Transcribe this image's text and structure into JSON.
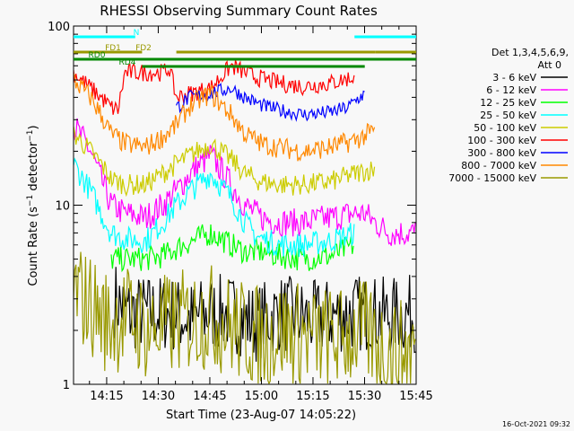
{
  "chart_data": {
    "type": "line",
    "title": "RHESSI Observing Summary Count Rates",
    "xlabel": "Start Time (23-Aug-07 14:05:22)",
    "ylabel": "Count Rate (s⁻¹ detector⁻¹)",
    "ylabel_main": "Count Rate (s",
    "ylabel_sup1": "−1",
    "ylabel_mid": " detector",
    "ylabel_sup2": "−1",
    "ylabel_end": ")",
    "yscale": "log",
    "ylim": [
      1,
      100
    ],
    "y_ticks": [
      {
        "v": 1,
        "label": "1"
      },
      {
        "v": 10,
        "label": "10"
      },
      {
        "v": 100,
        "label": "100"
      }
    ],
    "xlim": [
      "14:05:22",
      "15:45:00"
    ],
    "x_ticks": [
      "14:15",
      "14:30",
      "14:45",
      "15:00",
      "15:15",
      "15:30",
      "15:45"
    ],
    "grid": false,
    "legend_position": "right",
    "legend_header": [
      "Det 1,3,4,5,6,9,",
      "Att 0"
    ],
    "series": [
      {
        "name": "3 - 6 keV",
        "color": "#000000",
        "x": [
          12,
          16,
          20,
          28,
          34,
          40,
          46,
          53,
          60,
          70,
          80,
          85,
          92,
          100
        ],
        "y": [
          3.0,
          2.5,
          2.5,
          2.5,
          2.3,
          2.5,
          2.5,
          2.2,
          2.5,
          2.3,
          2.5,
          2.5,
          2.4,
          2.5
        ]
      },
      {
        "name": "6 - 12 keV",
        "color": "#ff00ff",
        "x": [
          0,
          5,
          8,
          11,
          15,
          21,
          26,
          30,
          34,
          40,
          46,
          50,
          53,
          55,
          60,
          67,
          75,
          82,
          85,
          88,
          92,
          100
        ],
        "y": [
          28,
          20,
          14,
          10,
          9,
          8.5,
          10,
          12,
          15,
          19,
          13,
          10,
          9,
          8.5,
          8,
          8,
          8.5,
          9,
          9,
          8,
          7,
          7
        ]
      },
      {
        "name": "12 - 25 keV",
        "color": "#00ff00",
        "x": [
          11,
          15,
          21,
          26,
          32,
          40,
          46,
          50,
          55,
          60,
          67,
          75,
          82
        ],
        "y": [
          5.0,
          5.0,
          5.0,
          5.2,
          6,
          7,
          6,
          5.5,
          5.5,
          5.2,
          5.0,
          5.2,
          6
        ]
      },
      {
        "name": "25 - 50 keV",
        "color": "#00ffff",
        "x": [
          0,
          5,
          8,
          11,
          15,
          21,
          26,
          30,
          34,
          40,
          46,
          50,
          53,
          55,
          60,
          67,
          75,
          82
        ],
        "y": [
          17,
          12,
          9,
          7,
          6.5,
          6.3,
          8,
          10,
          12,
          15,
          11,
          8,
          6.8,
          6.5,
          6.0,
          6.0,
          6.3,
          7
        ]
      },
      {
        "name": "50 - 100 keV",
        "color": "#cccc00",
        "x": [
          0,
          5,
          8,
          11,
          15,
          21,
          26,
          30,
          34,
          40,
          46,
          50,
          53,
          55,
          60,
          67,
          75,
          82,
          88
        ],
        "y": [
          25,
          20,
          17,
          14,
          13,
          13,
          15,
          17,
          19,
          22,
          18,
          15,
          14,
          13.5,
          13,
          13,
          13.5,
          15,
          16
        ]
      },
      {
        "name": "100 - 300 keV",
        "color": "#ff0000",
        "x": [
          0,
          5,
          8,
          11,
          13,
          15,
          21,
          26,
          28,
          30,
          34,
          40,
          46,
          50,
          53,
          60,
          67,
          75,
          82
        ],
        "y": [
          55,
          45,
          40,
          35,
          34,
          55,
          55,
          55,
          58,
          40,
          42,
          45,
          60,
          55,
          52,
          48,
          46,
          48,
          52
        ]
      },
      {
        "name": "300 - 800 keV",
        "color": "#0000ff",
        "x": [
          30,
          34,
          40,
          46,
          50,
          55,
          60,
          67,
          75,
          80,
          82,
          85
        ],
        "y": [
          35,
          40,
          42,
          45,
          40,
          36,
          34,
          32,
          33,
          35,
          38,
          42
        ]
      },
      {
        "name": "800 - 7000 keV",
        "color": "#ff8800",
        "x": [
          0,
          5,
          8,
          11,
          15,
          21,
          26,
          30,
          34,
          40,
          46,
          50,
          55,
          60,
          67,
          75,
          82,
          88
        ],
        "y": [
          50,
          40,
          32,
          25,
          22,
          21,
          24,
          28,
          36,
          42,
          32,
          25,
          22,
          21,
          20,
          21,
          23,
          26
        ]
      },
      {
        "name": "7000 - 15000 keV",
        "color": "#999900",
        "x": [
          0,
          5,
          10,
          16,
          22,
          30,
          40,
          48,
          55,
          62,
          70,
          78,
          84,
          90,
          96,
          100
        ],
        "y": [
          3.3,
          2.8,
          2.2,
          2.4,
          2.0,
          2.2,
          2.4,
          2.0,
          1.8,
          2.0,
          1.8,
          1.8,
          2.0,
          1.6,
          1.5,
          1.6
        ]
      }
    ],
    "flags": [
      {
        "name": "N",
        "color": "#00ffff"
      },
      {
        "name": "FD1",
        "color": "#999900"
      },
      {
        "name": "FD2",
        "color": "#999900"
      },
      {
        "name": "RD0",
        "color": "#008800"
      },
      {
        "name": "RD4",
        "color": "#008800"
      }
    ]
  },
  "footer": {
    "timestamp": "16-Oct-2021 09:32"
  }
}
